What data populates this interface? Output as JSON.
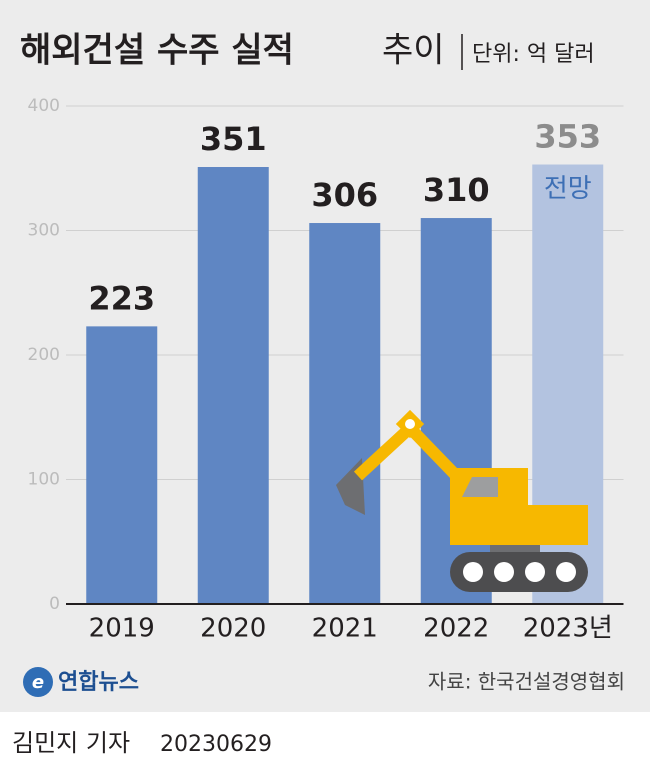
{
  "chart_data": {
    "type": "bar",
    "title": "해외건설 수주 실적",
    "title_suffix": "추이",
    "unit": "단위: 억 달러",
    "categories": [
      "2019",
      "2020",
      "2021",
      "2022",
      "2023년"
    ],
    "values": [
      223,
      351,
      306,
      310,
      353
    ],
    "colors": [
      "#5f86c3",
      "#5f86c3",
      "#5f86c3",
      "#5f86c3",
      "#b3c3e0"
    ],
    "value_label_colors": [
      "#231f20",
      "#231f20",
      "#231f20",
      "#231f20",
      "#8c8c8c"
    ],
    "annotation": "전망",
    "annotation_color": "#3d6fb5",
    "ylim": [
      0,
      400
    ],
    "yticks": [
      0,
      100,
      200,
      300,
      400
    ],
    "grid": true,
    "source": "자료: 한국건설경영협회",
    "logo": "연합뉴스",
    "byline": "김민지 기자",
    "date": "20230629"
  }
}
